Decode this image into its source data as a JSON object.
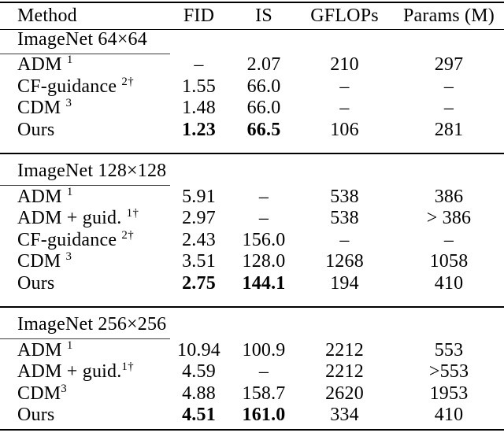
{
  "colors": {
    "background": "#ffffff",
    "text": "#000000",
    "rule": "#000000",
    "section_underline": "#3a3a3a"
  },
  "table": {
    "columns": [
      "Method",
      "FID",
      "IS",
      "GFLOPs",
      "Params (M)"
    ],
    "sections": [
      {
        "title": "ImageNet 64×64",
        "rows": [
          {
            "method": "ADM ",
            "sup": "1",
            "fid": "–",
            "is": "2.07",
            "gflops": "210",
            "params": "297",
            "bold_values": false
          },
          {
            "method": "CF-guidance ",
            "sup": "2†",
            "fid": "1.55",
            "is": "66.0",
            "gflops": "–",
            "params": "–",
            "bold_values": false
          },
          {
            "method": "CDM ",
            "sup": "3",
            "fid": "1.48",
            "is": "66.0",
            "gflops": "–",
            "params": "–",
            "bold_values": false
          },
          {
            "method": "Ours",
            "sup": "",
            "fid": "1.23",
            "is": "66.5",
            "gflops": "106",
            "params": "281",
            "bold_values": true
          }
        ]
      },
      {
        "title": "ImageNet 128×128",
        "rows": [
          {
            "method": "ADM ",
            "sup": "1",
            "fid": "5.91",
            "is": "–",
            "gflops": "538",
            "params": "386",
            "bold_values": false
          },
          {
            "method": "ADM + guid. ",
            "sup": "1†",
            "fid": "2.97",
            "is": "–",
            "gflops": "538",
            "params": "> 386",
            "bold_values": false
          },
          {
            "method": "CF-guidance ",
            "sup": "2†",
            "fid": "2.43",
            "is": "156.0",
            "gflops": "–",
            "params": "–",
            "bold_values": false
          },
          {
            "method": "CDM ",
            "sup": "3",
            "fid": "3.51",
            "is": "128.0",
            "gflops": "1268",
            "params": "1058",
            "bold_values": false
          },
          {
            "method": "Ours",
            "sup": "",
            "fid": "2.75",
            "is": "144.1",
            "gflops": "194",
            "params": "410",
            "bold_values": true
          }
        ]
      },
      {
        "title": "ImageNet 256×256",
        "rows": [
          {
            "method": "ADM ",
            "sup": "1",
            "fid": "10.94",
            "is": "100.9",
            "gflops": "2212",
            "params": "553",
            "bold_values": false
          },
          {
            "method": "ADM + guid.",
            "sup": "1†",
            "fid": "4.59",
            "is": "–",
            "gflops": "2212",
            "params": ">553",
            "bold_values": false
          },
          {
            "method": "CDM",
            "sup": "3",
            "fid": "4.88",
            "is": "158.7",
            "gflops": "2620",
            "params": "1953",
            "bold_values": false
          },
          {
            "method": "Ours",
            "sup": "",
            "fid": "4.51",
            "is": "161.0",
            "gflops": "334",
            "params": "410",
            "bold_values": true
          }
        ]
      }
    ]
  }
}
